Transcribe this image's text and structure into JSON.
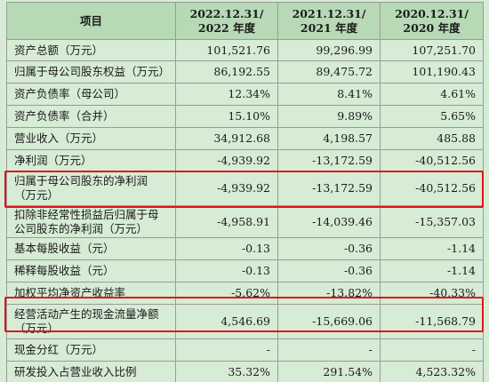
{
  "header": {
    "item": "项目",
    "col1": [
      "2022.12.31/",
      "2022 年度"
    ],
    "col2": [
      "2021.12.31/",
      "2021 年度"
    ],
    "col3": [
      "2020.12.31/",
      "2020 年度"
    ]
  },
  "rows": [
    {
      "label": [
        "资产总额（万元）"
      ],
      "v": [
        "101,521.76",
        "99,296.99",
        "107,251.70"
      ]
    },
    {
      "label": [
        "归属于母公司股东权益（万元）"
      ],
      "v": [
        "86,192.55",
        "89,475.72",
        "101,190.43"
      ]
    },
    {
      "label": [
        "资产负债率（母公司）"
      ],
      "v": [
        "12.34%",
        "8.41%",
        "4.61%"
      ]
    },
    {
      "label": [
        "资产负债率（合并）"
      ],
      "v": [
        "15.10%",
        "9.89%",
        "5.65%"
      ]
    },
    {
      "label": [
        "营业收入（万元）"
      ],
      "v": [
        "34,912.68",
        "4,198.57",
        "485.88"
      ]
    },
    {
      "label": [
        "净利润（万元）"
      ],
      "v": [
        "-4,939.92",
        "-13,172.59",
        "-40,512.56"
      ]
    },
    {
      "label": [
        "归属于母公司股东的净利润",
        "（万元）"
      ],
      "v": [
        "-4,939.92",
        "-13,172.59",
        "-40,512.56"
      ]
    },
    {
      "label": [
        "扣除非经常性损益后归属于母",
        "公司股东的净利润（万元）"
      ],
      "v": [
        "-4,958.91",
        "-14,039.46",
        "-15,357.03"
      ]
    },
    {
      "label": [
        "基本每股收益（元）"
      ],
      "v": [
        "-0.13",
        "-0.36",
        "-1.14"
      ]
    },
    {
      "label": [
        "稀释每股收益（元）"
      ],
      "v": [
        "-0.13",
        "-0.36",
        "-1.14"
      ]
    },
    {
      "label": [
        "加权平均净资产收益率"
      ],
      "v": [
        "-5.62%",
        "-13.82%",
        "-40.33%"
      ]
    },
    {
      "label": [
        "经营活动产生的现金流量净额",
        "（万元）"
      ],
      "v": [
        "4,546.69",
        "-15,669.06",
        "-11,568.79"
      ]
    },
    {
      "label": [
        "现金分红（万元）"
      ],
      "v": [
        "-",
        "-",
        "-"
      ]
    },
    {
      "label": [
        "研发投入占营业收入比例"
      ],
      "v": [
        "35.32%",
        "291.54%",
        "4,523.32%"
      ]
    }
  ],
  "highlight_color": "#e0141c",
  "background_color": "#d6ecd5",
  "header_color": "#b7d9b6"
}
